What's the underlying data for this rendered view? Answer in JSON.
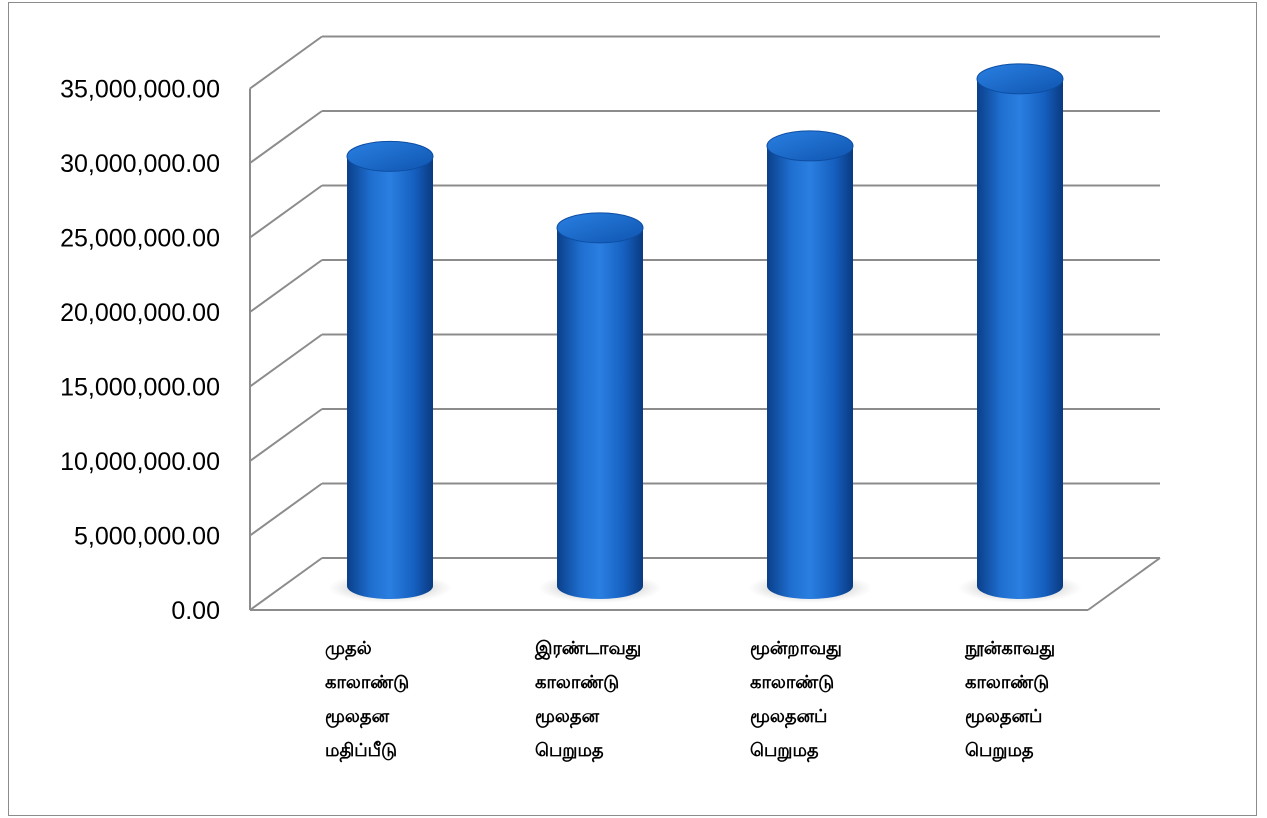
{
  "chart_data": {
    "type": "bar",
    "style": "3d-cylinder",
    "title": "",
    "xlabel": "",
    "ylabel": "",
    "ylim": [
      0,
      35000000
    ],
    "y_ticks": [
      "0.00",
      "5,000,000.00",
      "10,000,000.00",
      "15,000,000.00",
      "20,000,000.00",
      "25,000,000.00",
      "30,000,000.00",
      "35,000,000.00"
    ],
    "y_tick_values": [
      0,
      5000000,
      10000000,
      15000000,
      20000000,
      25000000,
      30000000,
      35000000
    ],
    "grid": true,
    "legend": "none",
    "bar_color": "#1565c0",
    "categories": [
      [
        "முதல்",
        "காலாண்டு",
        "மூலதன",
        "மதிப்பீடு"
      ],
      [
        "இரண்டாவது",
        "காலாண்டு",
        "மூலதன",
        "பெறுமத"
      ],
      [
        "மூன்றாவது",
        "காலாண்டு",
        "மூலதனப்",
        "பெறுமத"
      ],
      [
        "நூன்காவது",
        "காலாண்டு",
        "மூலதனப்",
        "பெறுமத"
      ]
    ],
    "values": [
      28300000,
      23500000,
      29000000,
      33500000
    ]
  }
}
